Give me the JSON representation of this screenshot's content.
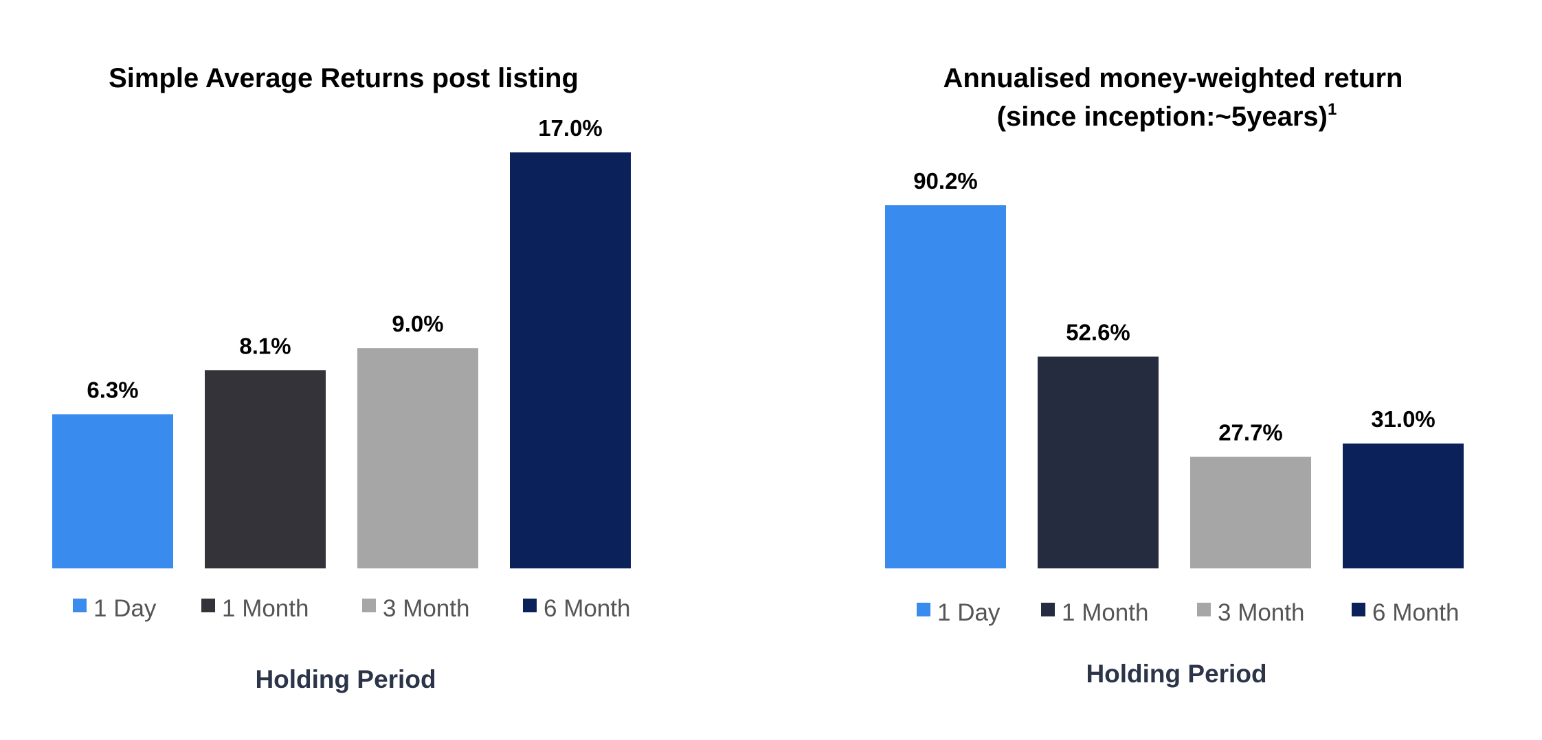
{
  "colors": {
    "1 Day": "#3a8bee",
    "1 Month": "#333339",
    "3 Month": "#a6a6a6",
    "6 Month": "#0a215a"
  },
  "chart_data": [
    {
      "type": "bar",
      "title": "Simple Average Returns post listing",
      "xlabel": "Holding Period",
      "ylabel": "",
      "grid": false,
      "legend": "bottom",
      "categories": [
        "1 Day",
        "1 Month",
        "3 Month",
        "6 Month"
      ],
      "values": [
        6.3,
        8.1,
        9.0,
        17.0
      ],
      "labels": [
        "6.3%",
        "8.1%",
        "9.0%",
        "17.0%"
      ],
      "colors": [
        "#3a8bee",
        "#333339",
        "#a6a6a6",
        "#0a215a"
      ],
      "ylim": [
        0,
        17.0
      ]
    },
    {
      "type": "bar",
      "title": "Annualised money-weighted return",
      "title_line2": "(since inception:~5years)",
      "title_footnote": "1",
      "xlabel": "Holding Period",
      "ylabel": "",
      "grid": false,
      "legend": "bottom",
      "categories": [
        "1 Day",
        "1 Month",
        "3 Month",
        "6 Month"
      ],
      "values": [
        90.2,
        52.6,
        27.7,
        31.0
      ],
      "labels": [
        "90.2%",
        "52.6%",
        "27.7%",
        "31.0%"
      ],
      "colors": [
        "#3a8bee",
        "#262c40",
        "#a6a6a6",
        "#0a215a"
      ],
      "ylim": [
        0,
        90.2
      ]
    }
  ]
}
